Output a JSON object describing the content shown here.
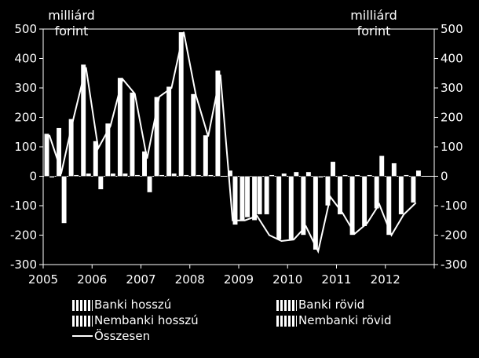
{
  "units": {
    "left": "milliárd forint",
    "right": "milliárd forint"
  },
  "legend": {
    "banki_hosszu": "Banki hosszú",
    "banki_rovid": "Banki rövid",
    "nembanki_hosszu": "Nembanki hosszú",
    "nembanki_rovid": "Nembanki rövid",
    "osszesen": "Összesen"
  },
  "chart_data": {
    "type": "bar",
    "ylim": [
      -300,
      500
    ],
    "yticks": [
      500,
      400,
      300,
      200,
      100,
      0,
      -100,
      -200,
      -300
    ],
    "year_labels": [
      "2005",
      "2006",
      "2007",
      "2008",
      "2009",
      "2010",
      "2011",
      "2012"
    ],
    "quarters": 31,
    "series": [
      {
        "name": "Banki hosszú",
        "kind": "bar",
        "values": [
          145,
          165,
          195,
          380,
          120,
          180,
          335,
          285,
          85,
          270,
          305,
          490,
          280,
          140,
          360,
          20,
          -150,
          -150,
          -130,
          -215,
          -215,
          -200,
          -250,
          -100,
          -130,
          -200,
          -170,
          -110,
          -200,
          -130,
          -90
        ]
      },
      {
        "name": "Banki rövid",
        "kind": "bar",
        "values": [
          -5,
          -160,
          5,
          10,
          -45,
          10,
          10,
          5,
          -55,
          5,
          10,
          5,
          5,
          5,
          0,
          -165,
          -140,
          -130,
          5,
          10,
          15,
          15,
          -5,
          50,
          5,
          5,
          5,
          70,
          45,
          5,
          20
        ]
      },
      {
        "name": "Összesen",
        "kind": "line",
        "values": [
          140,
          15,
          200,
          370,
          95,
          170,
          330,
          280,
          60,
          270,
          300,
          490,
          275,
          135,
          345,
          -150,
          -150,
          -135,
          -200,
          -220,
          -215,
          -170,
          -255,
          -70,
          -125,
          -195,
          -160,
          -95,
          -200,
          -130,
          -90
        ]
      }
    ]
  }
}
